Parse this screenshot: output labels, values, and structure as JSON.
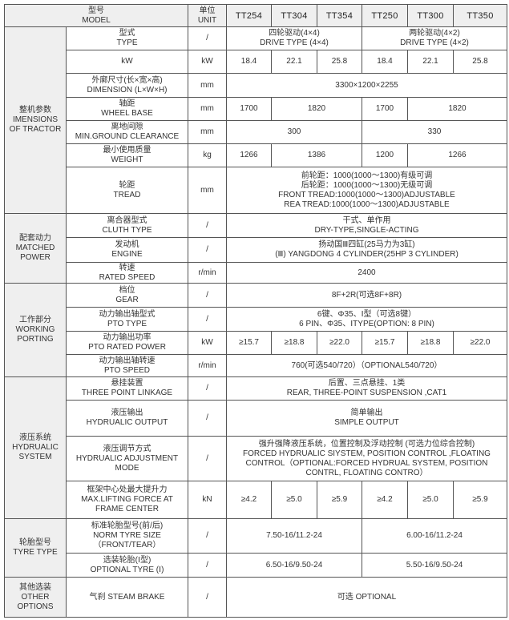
{
  "header": {
    "model_cn": "型号",
    "model_en": "MODEL",
    "unit_cn": "单位",
    "unit_en": "UNIT",
    "models": [
      "TT254",
      "TT304",
      "TT354",
      "TT250",
      "TT300",
      "TT350"
    ]
  },
  "groups": [
    {
      "label": [
        "整机参数",
        "IMENSIONS",
        "OF TRACTOR"
      ],
      "rows": [
        {
          "param": [
            "型式",
            "TYPE"
          ],
          "unit": "/",
          "h": 29,
          "cells": [
            {
              "text": [
                "四轮驱动(4×4)",
                "DRIVE TYPE (4×4)"
              ],
              "span": 3
            },
            {
              "text": [
                "两轮驱动(4×2)",
                "DRIVE TYPE (4×2)"
              ],
              "span": 3
            }
          ]
        },
        {
          "param": [
            "kW"
          ],
          "unit": "kW",
          "h": 29,
          "cells": [
            {
              "text": [
                "18.4"
              ],
              "span": 1
            },
            {
              "text": [
                "22.1"
              ],
              "span": 1
            },
            {
              "text": [
                "25.8"
              ],
              "span": 1
            },
            {
              "text": [
                "18.4"
              ],
              "span": 1
            },
            {
              "text": [
                "22.1"
              ],
              "span": 1
            },
            {
              "text": [
                "25.8"
              ],
              "span": 1
            }
          ]
        },
        {
          "param": [
            "外廓尺寸(长×宽×高)",
            "DIMENSION (L×W×H)"
          ],
          "unit": "mm",
          "h": 30,
          "cells": [
            {
              "text": [
                "3300×1200×2255"
              ],
              "span": 6
            }
          ]
        },
        {
          "param": [
            "轴距",
            "WHEEL BASE"
          ],
          "unit": "mm",
          "h": 29,
          "cells": [
            {
              "text": [
                "1700"
              ],
              "span": 1
            },
            {
              "text": [
                "1820"
              ],
              "span": 2
            },
            {
              "text": [
                "1700"
              ],
              "span": 1
            },
            {
              "text": [
                "1820"
              ],
              "span": 2
            }
          ]
        },
        {
          "param": [
            "离地间隙",
            "MIN.GROUND CLEARANCE"
          ],
          "unit": "mm",
          "h": 29,
          "cells": [
            {
              "text": [
                "300"
              ],
              "span": 3
            },
            {
              "text": [
                "330"
              ],
              "span": 3
            }
          ]
        },
        {
          "param": [
            "最小使用质量",
            "WEIGHT"
          ],
          "unit": "kg",
          "h": 29,
          "cells": [
            {
              "text": [
                "1266"
              ],
              "span": 1
            },
            {
              "text": [
                "1386"
              ],
              "span": 2
            },
            {
              "text": [
                "1200"
              ],
              "span": 1
            },
            {
              "text": [
                "1266"
              ],
              "span": 2
            }
          ]
        },
        {
          "param": [
            "轮距",
            "TREAD"
          ],
          "unit": "mm",
          "h": 58,
          "cells": [
            {
              "text": [
                "前轮距：1000(1000～1300)有级可调",
                "后轮距：1000(1000～1300)无级可调",
                "FRONT TREAD:1000(1000～1300)ADJUSTABLE",
                "REA   TREAD:1000(1000～1300)ADJUSTABLE"
              ],
              "span": 6
            }
          ]
        }
      ]
    },
    {
      "label": [
        "配套动力",
        "MATCHED",
        "POWER"
      ],
      "rows": [
        {
          "param": [
            "离合器型式",
            "CLUTH TYPE"
          ],
          "unit": "/",
          "h": 30,
          "cells": [
            {
              "text": [
                "干式、单作用",
                "DRY-TYPE,SINGLE-ACTING"
              ],
              "span": 6
            }
          ]
        },
        {
          "param": [
            "发动机",
            "ENGINE"
          ],
          "unit": "/",
          "h": 31,
          "cells": [
            {
              "text": [
                "扬动国Ⅲ四缸(25马力为3缸)",
                "(Ⅲ) YANGDONG 4 CYLINDER(25HP 3 CYLINDER)"
              ],
              "span": 6
            }
          ]
        },
        {
          "param": [
            "转速",
            "RATED SPEED"
          ],
          "unit": "r/min",
          "h": 26,
          "cells": [
            {
              "text": [
                "2400"
              ],
              "span": 6
            }
          ]
        }
      ]
    },
    {
      "label": [
        "工作部分",
        "WORKING",
        "PORTING"
      ],
      "rows": [
        {
          "param": [
            "档位",
            "GEAR"
          ],
          "unit": "/",
          "h": 30,
          "cells": [
            {
              "text": [
                "8F+2R(可选8F+8R)"
              ],
              "span": 6
            }
          ]
        },
        {
          "param": [
            "动力输出轴型式",
            "PTO TYPE"
          ],
          "unit": "/",
          "h": 30,
          "cells": [
            {
              "text": [
                "6键、Φ35、Ⅰ型（可选8键）",
                "6 PIN、Φ35、ⅠTYPE(OPTION: 8 PIN)"
              ],
              "span": 6
            }
          ]
        },
        {
          "param": [
            "动力输出功率",
            "PTO RATED POWER"
          ],
          "unit": "kW",
          "h": 29,
          "cells": [
            {
              "text": [
                "≥15.7"
              ],
              "span": 1
            },
            {
              "text": [
                "≥18.8"
              ],
              "span": 1
            },
            {
              "text": [
                "≥22.0"
              ],
              "span": 1
            },
            {
              "text": [
                "≥15.7"
              ],
              "span": 1
            },
            {
              "text": [
                "≥18.8"
              ],
              "span": 1
            },
            {
              "text": [
                "≥22.0"
              ],
              "span": 1
            }
          ]
        },
        {
          "param": [
            "动力输出轴转速",
            "PTO SPEED"
          ],
          "unit": "r/min",
          "h": 28,
          "cells": [
            {
              "text": [
                "760(可选540/720）（OPTIONAL540/720）"
              ],
              "span": 6
            }
          ]
        }
      ]
    },
    {
      "label": [
        "液压系统",
        "HYDRUALIC",
        "SYSTEM"
      ],
      "rows": [
        {
          "param": [
            "悬挂装置",
            "THREE POINT LINKAGE"
          ],
          "unit": "/",
          "h": 29,
          "cells": [
            {
              "text": [
                "后置、三点悬挂、1类",
                "REAR, THREE-POINT SUSPENSION ,CAT1"
              ],
              "span": 6
            }
          ]
        },
        {
          "param": [
            "液压输出",
            "HYDRUALIC OUTPUT"
          ],
          "unit": "/",
          "h": 45,
          "cells": [
            {
              "text": [
                "简单输出",
                "SIMPLE OUTPUT"
              ],
              "span": 6
            }
          ]
        },
        {
          "param": [
            "液压调节方式",
            "HYDRUALIC ADJUSTMENT",
            "MODE"
          ],
          "unit": "/",
          "h": 56,
          "cells": [
            {
              "text": [
                "强升强降液压系统，位置控制及浮动控制 (可选力位综合控制)",
                "FORCED HYDRUALIC SIYSTEM, POSITION CONTROL ,FLOATING",
                "CONTROL（OPTIONAL:FORCED HYDRUAL SYSTEM, POSITION",
                "CONTRL, FLOATING CONTRO）"
              ],
              "span": 6
            }
          ]
        },
        {
          "param": [
            "框架中心处最大提升力",
            "MAX.LIFTING FORCE AT",
            "FRAME CENTER"
          ],
          "unit": "kN",
          "h": 47,
          "cells": [
            {
              "text": [
                "≥4.2"
              ],
              "span": 1
            },
            {
              "text": [
                "≥5.0"
              ],
              "span": 1
            },
            {
              "text": [
                "≥5.9"
              ],
              "span": 1
            },
            {
              "text": [
                "≥4.2"
              ],
              "span": 1
            },
            {
              "text": [
                "≥5.0"
              ],
              "span": 1
            },
            {
              "text": [
                "≥5.9"
              ],
              "span": 1
            }
          ]
        }
      ]
    },
    {
      "label": [
        "轮胎型号",
        "TYRE TYPE"
      ],
      "rows": [
        {
          "param": [
            "标准轮胎型号(前/后)",
            "NORM TYRE SIZE",
            "（FRONT/TEAR）"
          ],
          "unit": "/",
          "h": 43,
          "cells": [
            {
              "text": [
                "7.50-16/11.2-24"
              ],
              "span": 3
            },
            {
              "text": [
                "6.00-16/11.2-24"
              ],
              "span": 3
            }
          ]
        },
        {
          "param": [
            "选装轮胎(Ⅰ型)",
            "OPTIONAL TYRE (Ⅰ)"
          ],
          "unit": "/",
          "h": 30,
          "cells": [
            {
              "text": [
                "6.50-16/9.50-24"
              ],
              "span": 3
            },
            {
              "text": [
                "5.50-16/9.50-24"
              ],
              "span": 3
            }
          ]
        }
      ]
    },
    {
      "label": [
        "其他选装",
        "OTHER",
        "OPTIONS"
      ],
      "rows": [
        {
          "param": [
            "气刹 STEAM BRAKE"
          ],
          "unit": "/",
          "h": 50,
          "cells": [
            {
              "text": [
                "可选 OPTIONAL"
              ],
              "span": 6
            }
          ]
        }
      ]
    }
  ]
}
